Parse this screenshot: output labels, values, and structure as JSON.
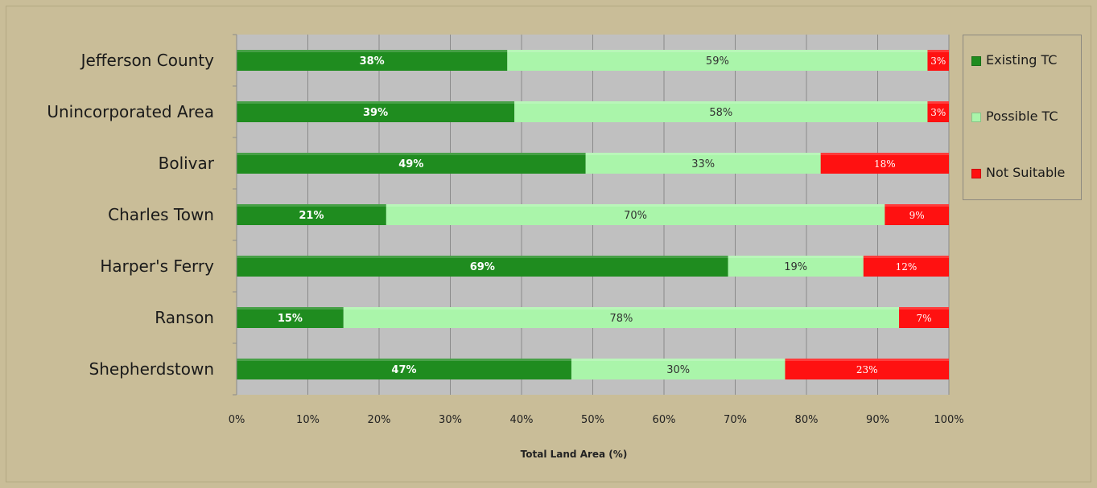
{
  "chart_data": {
    "type": "bar",
    "orientation": "horizontal",
    "stacked": "percent",
    "categories": [
      "Jefferson County",
      "Unincorporated Area",
      "Bolivar",
      "Charles Town",
      "Harper's Ferry",
      "Ranson",
      "Shepherdstown"
    ],
    "series": [
      {
        "name": "Existing TC",
        "color": "#1f8c1f",
        "values": [
          38,
          39,
          49,
          21,
          69,
          15,
          47
        ],
        "labels": [
          "38%",
          "39%",
          "49%",
          "21%",
          "69%",
          "15%",
          "47%"
        ]
      },
      {
        "name": "Possible TC",
        "color": "#aaf5aa",
        "values": [
          59,
          58,
          33,
          70,
          19,
          78,
          30
        ],
        "labels": [
          "59%",
          "58%",
          "33%",
          "70%",
          "19%",
          "78%",
          "30%"
        ]
      },
      {
        "name": "Not Suitable",
        "color": "#ff1111",
        "values": [
          3,
          3,
          18,
          9,
          12,
          7,
          23
        ],
        "labels": [
          "3%",
          "3%",
          "18%",
          "9%",
          "12%",
          "7%",
          "23%"
        ]
      }
    ],
    "xlabel": "Total Land Area (%)",
    "xlim": [
      0,
      100
    ],
    "xticks": [
      "0%",
      "10%",
      "20%",
      "30%",
      "40%",
      "50%",
      "60%",
      "70%",
      "80%",
      "90%",
      "100%"
    ],
    "grid": true,
    "legend": "right",
    "plot_background": "#c0c0c0",
    "background": "#c9bd98"
  }
}
